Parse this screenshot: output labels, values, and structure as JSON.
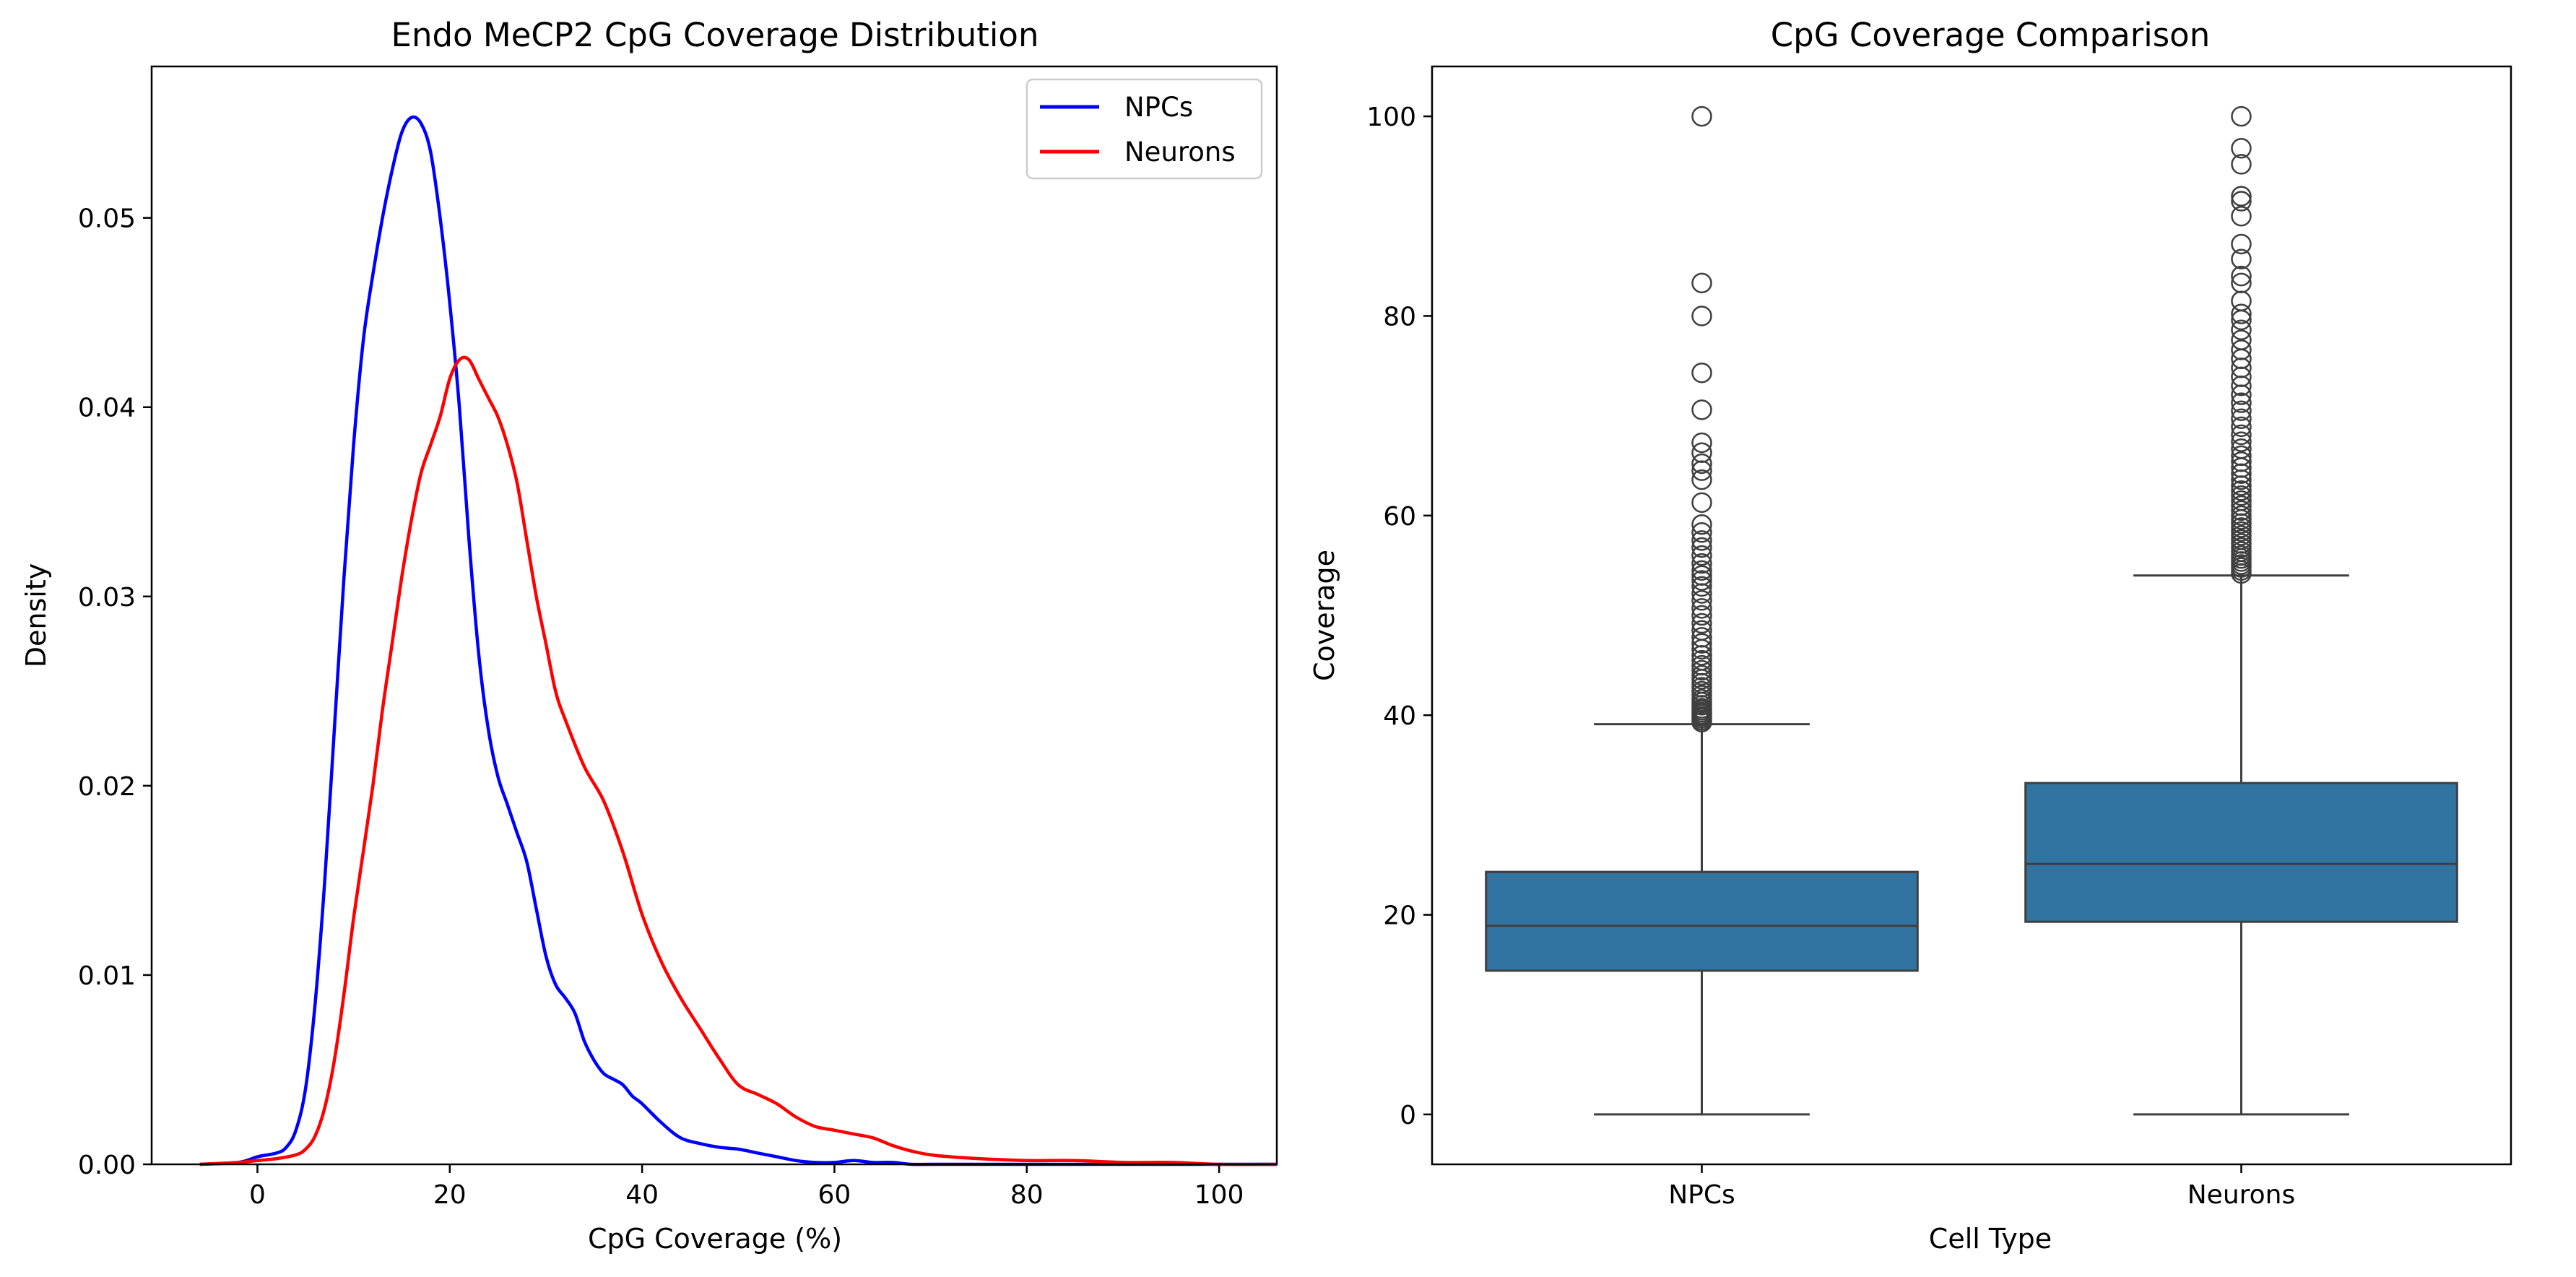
{
  "chart_data": [
    {
      "type": "line",
      "title": "Endo MeCP2 CpG Coverage Distribution",
      "xlabel": "CpG Coverage (%)",
      "ylabel": "Density",
      "xlim": [
        -11,
        106
      ],
      "ylim": [
        0,
        0.058
      ],
      "xticks": [
        0,
        20,
        40,
        60,
        80,
        100
      ],
      "yticks": [
        0.0,
        0.01,
        0.02,
        0.03,
        0.04,
        0.05
      ],
      "ytick_labels": [
        "0.00",
        "0.01",
        "0.02",
        "0.03",
        "0.04",
        "0.05"
      ],
      "legend_position": "top-right",
      "grid": false,
      "series": [
        {
          "name": "NPCs",
          "color": "#0000ff",
          "x": [
            -6,
            -2,
            0,
            2,
            3,
            4,
            5,
            6,
            7,
            8,
            9,
            10,
            11,
            12,
            13,
            14,
            15,
            16,
            17,
            18,
            19,
            20,
            21,
            22,
            23,
            24,
            25,
            26,
            27,
            28,
            29,
            30,
            31,
            32,
            33,
            34,
            35,
            36,
            37,
            38,
            39,
            40,
            42,
            44,
            46,
            48,
            50,
            52,
            54,
            56,
            58,
            60,
            62,
            64,
            66,
            68,
            70,
            75,
            80,
            90,
            100,
            106
          ],
          "y": [
            0.0,
            0.0001,
            0.0004,
            0.0006,
            0.0009,
            0.0018,
            0.004,
            0.0085,
            0.015,
            0.023,
            0.031,
            0.038,
            0.0435,
            0.047,
            0.05,
            0.0525,
            0.0545,
            0.0553,
            0.055,
            0.0535,
            0.05,
            0.0455,
            0.04,
            0.033,
            0.027,
            0.023,
            0.0205,
            0.019,
            0.0175,
            0.016,
            0.0135,
            0.011,
            0.0095,
            0.0088,
            0.008,
            0.0065,
            0.0055,
            0.0048,
            0.0045,
            0.0042,
            0.0036,
            0.0032,
            0.0022,
            0.0014,
            0.0011,
            0.0009,
            0.0008,
            0.0006,
            0.0004,
            0.0002,
            0.0001,
            0.0001,
            0.0002,
            0.0001,
            0.0001,
            0.0,
            0.0,
            0.0,
            0.0,
            0.0,
            0.0,
            0.0
          ]
        },
        {
          "name": "Neurons",
          "color": "#ff0000",
          "x": [
            -6,
            -2,
            0,
            2,
            4,
            5,
            6,
            7,
            8,
            9,
            10,
            11,
            12,
            13,
            14,
            15,
            16,
            17,
            18,
            19,
            20,
            21,
            22,
            23,
            24,
            25,
            26,
            27,
            28,
            29,
            30,
            31,
            32,
            34,
            36,
            38,
            40,
            42,
            44,
            46,
            48,
            50,
            52,
            54,
            56,
            58,
            60,
            62,
            64,
            66,
            68,
            70,
            72,
            75,
            80,
            85,
            90,
            95,
            100,
            106
          ],
          "y": [
            0.0,
            0.0001,
            0.0002,
            0.0003,
            0.0005,
            0.0008,
            0.0015,
            0.003,
            0.0055,
            0.009,
            0.013,
            0.0165,
            0.02,
            0.024,
            0.0275,
            0.031,
            0.034,
            0.0365,
            0.038,
            0.0395,
            0.0415,
            0.0425,
            0.0425,
            0.0415,
            0.0405,
            0.0395,
            0.038,
            0.036,
            0.033,
            0.03,
            0.0275,
            0.025,
            0.0235,
            0.021,
            0.0192,
            0.0165,
            0.0132,
            0.0107,
            0.0088,
            0.0072,
            0.0056,
            0.0042,
            0.0037,
            0.0032,
            0.0025,
            0.002,
            0.0018,
            0.0016,
            0.0014,
            0.001,
            0.0007,
            0.0005,
            0.0004,
            0.0003,
            0.0002,
            0.0002,
            0.0001,
            0.0001,
            0.0,
            0.0
          ]
        }
      ]
    },
    {
      "type": "box",
      "title": "CpG Coverage Comparison",
      "xlabel": "Cell Type",
      "ylabel": "Coverage",
      "categories": [
        "NPCs",
        "Neurons"
      ],
      "ylim": [
        -5,
        105
      ],
      "yticks": [
        0,
        20,
        40,
        60,
        80,
        100
      ],
      "box_color": "#3274a1",
      "edge_color": "#3f3f3f",
      "grid": false,
      "boxes": [
        {
          "name": "NPCs",
          "whisker_low": 0,
          "q1": 14.4,
          "median": 18.9,
          "q3": 24.3,
          "whisker_high": 39.1,
          "outliers": [
            39.3,
            39.5,
            39.7,
            39.9,
            40.1,
            40.3,
            40.5,
            40.7,
            41.0,
            41.3,
            41.6,
            42.0,
            42.4,
            42.8,
            43.2,
            43.6,
            44.0,
            44.5,
            45.0,
            45.5,
            46.0,
            46.6,
            47.2,
            47.8,
            48.5,
            49.2,
            50.0,
            50.7,
            51.5,
            52.2,
            52.9,
            53.5,
            54.0,
            54.5,
            55.2,
            56.0,
            56.8,
            57.5,
            58.3,
            59.1,
            61.3,
            63.6,
            64.5,
            65.2,
            66.3,
            67.3,
            70.6,
            74.3,
            80.0,
            83.3,
            100.0
          ]
        },
        {
          "name": "Neurons",
          "whisker_low": 0,
          "q1": 19.3,
          "median": 25.1,
          "q3": 33.2,
          "whisker_high": 54.0,
          "outliers": [
            54.2,
            54.5,
            54.8,
            55.1,
            55.4,
            55.7,
            56.0,
            56.4,
            56.8,
            57.2,
            57.6,
            58.0,
            58.4,
            58.8,
            59.2,
            59.6,
            60.0,
            60.5,
            61.0,
            61.5,
            62.0,
            62.5,
            63.0,
            63.6,
            64.2,
            64.8,
            65.4,
            66.0,
            66.7,
            67.4,
            68.1,
            68.9,
            69.7,
            70.5,
            71.3,
            72.1,
            73.0,
            73.9,
            74.8,
            75.7,
            76.6,
            77.6,
            78.6,
            79.6,
            80.2,
            81.5,
            83.3,
            84.0,
            85.7,
            87.2,
            90.0,
            91.5,
            92.0,
            95.2,
            96.8,
            100.0
          ]
        }
      ]
    }
  ]
}
